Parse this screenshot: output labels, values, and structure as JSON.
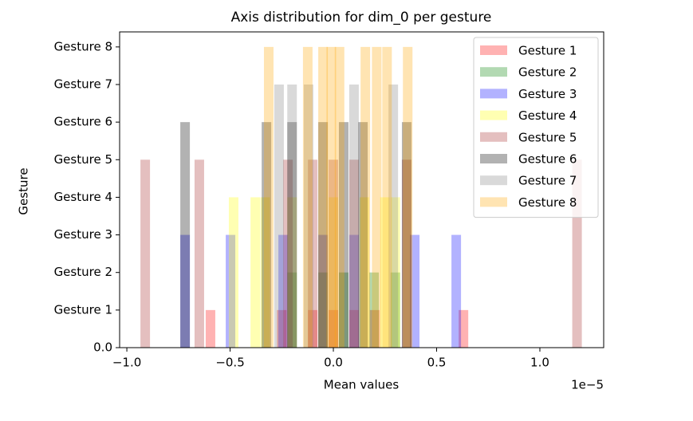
{
  "chart_data": {
    "type": "histogram",
    "title": "Axis distribution for dim_0 per gesture",
    "x_label": "Mean values",
    "y_label": "Gesture",
    "x_offset_label": "1e−5",
    "xlim": [
      -1.035,
      1.309
    ],
    "ylim": [
      0,
      8.4
    ],
    "xticks": [
      {
        "value": -1.0,
        "label": "−1.0"
      },
      {
        "value": -0.5,
        "label": "−0.5"
      },
      {
        "value": 0,
        "label": "0.0"
      },
      {
        "value": 0.5,
        "label": "0.5"
      },
      {
        "value": 1.0,
        "label": "1.0"
      }
    ],
    "yticks": [
      {
        "value": 0,
        "label": "0.0"
      },
      {
        "value": 1,
        "label": "Gesture 1"
      },
      {
        "value": 2,
        "label": "Gesture 2"
      },
      {
        "value": 3,
        "label": "Gesture 3"
      },
      {
        "value": 4,
        "label": "Gesture 4"
      },
      {
        "value": 5,
        "label": "Gesture 5"
      },
      {
        "value": 6,
        "label": "Gesture 6"
      },
      {
        "value": 7,
        "label": "Gesture 7"
      },
      {
        "value": 8,
        "label": "Gesture 8"
      }
    ],
    "legend": "upper right",
    "series": [
      {
        "name": "Gesture 1",
        "color": "#ff0000",
        "x": [
          -0.595,
          -0.25,
          -0.1,
          0.0,
          0.1,
          0.2,
          0.63
        ],
        "values": [
          1,
          1,
          1,
          1,
          1,
          1,
          1
        ]
      },
      {
        "name": "Gesture 2",
        "color": "#008000",
        "x": [
          -0.2,
          -0.05,
          0.05,
          0.197,
          0.3
        ],
        "values": [
          2,
          2,
          2,
          2,
          2
        ]
      },
      {
        "name": "Gesture 3",
        "color": "#0000ff",
        "x": [
          -0.718,
          -0.498,
          -0.243,
          -0.05,
          0.1,
          0.394,
          0.595
        ],
        "values": [
          3,
          3,
          3,
          3,
          3,
          3,
          3
        ]
      },
      {
        "name": "Gesture 4",
        "color": "#ffff00",
        "x": [
          -0.483,
          -0.378,
          -0.33,
          -0.2,
          0.0,
          0.15,
          0.25,
          0.3
        ],
        "values": [
          4,
          4,
          4,
          4,
          4,
          4,
          4,
          4
        ]
      },
      {
        "name": "Gesture 5",
        "color": "#a52a2a",
        "x": [
          -0.911,
          -0.649,
          -0.22,
          -0.1,
          0.0,
          0.1,
          0.355,
          1.18
        ],
        "values": [
          5,
          5,
          5,
          5,
          5,
          5,
          5,
          5
        ]
      },
      {
        "name": "Gesture 6",
        "color": "#000000",
        "x": [
          -0.718,
          -0.324,
          -0.2,
          -0.05,
          0.05,
          0.143,
          0.355
        ],
        "values": [
          6,
          6,
          6,
          6,
          6,
          6,
          6
        ]
      },
      {
        "name": "Gesture 7",
        "color": "#808080",
        "x": [
          -0.263,
          -0.2,
          -0.12,
          0.1,
          0.29
        ],
        "values": [
          7,
          7,
          7,
          7,
          7
        ]
      },
      {
        "name": "Gesture 8",
        "color": "#ffa500",
        "x": [
          -0.313,
          -0.124,
          -0.05,
          -0.01,
          0.03,
          0.155,
          0.21,
          0.26,
          0.36
        ],
        "values": [
          8,
          8,
          8,
          8,
          8,
          8,
          8,
          8,
          8
        ]
      }
    ]
  }
}
